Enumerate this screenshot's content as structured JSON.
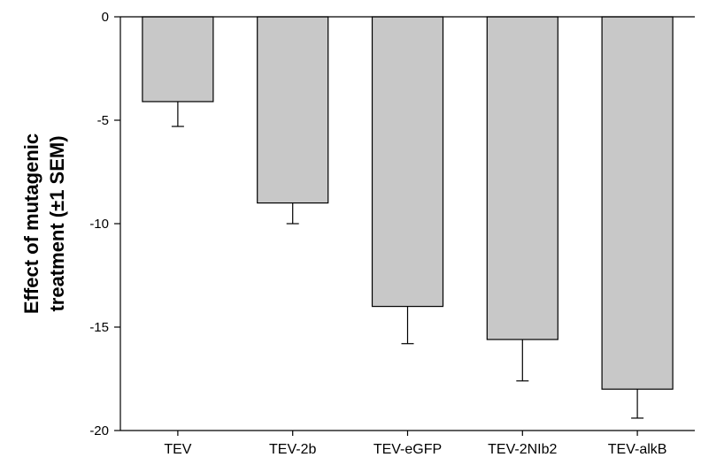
{
  "chart_data": {
    "type": "bar",
    "categories": [
      "TEV",
      "TEV-2b",
      "TEV-eGFP",
      "TEV-2NIb2",
      "TEV-alkB"
    ],
    "values": [
      -4.1,
      -9.0,
      -14.0,
      -15.6,
      -18.0
    ],
    "error_bars": [
      1.2,
      1.0,
      1.8,
      2.0,
      1.4
    ],
    "ylim": [
      -20,
      0
    ],
    "yticks": [
      0,
      -5,
      -10,
      -15,
      -20
    ],
    "ylabel_lines": [
      "Effect of mutagenic",
      "treatment (±1 SEM)"
    ],
    "xlabel": "",
    "title": "",
    "bar_color": "#c8c8c8",
    "grid": false,
    "legend": "none"
  }
}
